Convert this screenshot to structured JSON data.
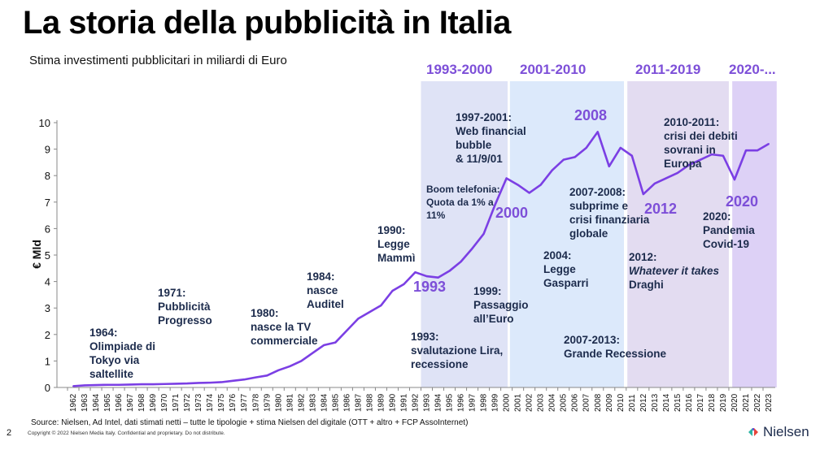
{
  "title": "La storia della pubblicità in Italia",
  "subtitle": "Stima investimenti pubblicitari in miliardi di Euro",
  "footer": {
    "source": "Source: Nielsen, Ad Intel, dati stimati netti – tutte le tipologie + stima Nielsen del digitale (OTT  + altro +  FCP AssoInternet)",
    "page_number": "2",
    "copyright": "Copyright © 2022 Nielsen Media Italy. Confidential and proprietary. Do not distribute.",
    "logo": "Nielsen"
  },
  "colors": {
    "line": "#7b3fe4",
    "text": "#1c2b4c",
    "highlight": "#7d4fd8",
    "band1": "#dfe3f6",
    "band2": "#dce9fb",
    "band3": "#e3dcf1",
    "band4": "#ddd1f6"
  },
  "chart_data": {
    "type": "line",
    "ylabel": "€ Mld",
    "ylim": [
      0,
      10
    ],
    "yticks": [
      0,
      1,
      2,
      3,
      4,
      5,
      6,
      7,
      8,
      9,
      10
    ],
    "x": [
      1962,
      1963,
      1964,
      1965,
      1966,
      1967,
      1968,
      1969,
      1970,
      1971,
      1972,
      1973,
      1974,
      1975,
      1976,
      1977,
      1978,
      1979,
      1980,
      1981,
      1982,
      1983,
      1984,
      1985,
      1986,
      1987,
      1988,
      1989,
      1990,
      1991,
      1992,
      1993,
      1994,
      1995,
      1996,
      1997,
      1998,
      1999,
      2000,
      2001,
      2002,
      2003,
      2004,
      2005,
      2006,
      2007,
      2008,
      2009,
      2010,
      2011,
      2012,
      2013,
      2014,
      2015,
      2016,
      2017,
      2018,
      2019,
      2020,
      2021,
      2022,
      2023
    ],
    "values": [
      0.05,
      0.08,
      0.09,
      0.1,
      0.1,
      0.11,
      0.12,
      0.12,
      0.13,
      0.14,
      0.15,
      0.17,
      0.18,
      0.2,
      0.25,
      0.3,
      0.38,
      0.45,
      0.65,
      0.8,
      1.0,
      1.3,
      1.6,
      1.7,
      2.15,
      2.6,
      2.85,
      3.1,
      3.65,
      3.9,
      4.35,
      4.2,
      4.15,
      4.4,
      4.75,
      5.25,
      5.8,
      6.9,
      7.9,
      7.65,
      7.35,
      7.65,
      8.2,
      8.6,
      8.7,
      9.05,
      9.65,
      8.35,
      9.05,
      8.75,
      7.3,
      7.7,
      7.9,
      8.1,
      8.4,
      8.6,
      8.8,
      8.75,
      7.85,
      8.95,
      8.95,
      9.2
    ],
    "periods": [
      {
        "label": "1993-2000",
        "from": 1992.5,
        "to": 2000.1
      },
      {
        "label": "2001-2010",
        "from": 2000.3,
        "to": 2010.3
      },
      {
        "label": "2011-2019",
        "from": 2010.6,
        "to": 2019.5
      },
      {
        "label": "2020-...",
        "from": 2019.8,
        "to": 2023.7
      }
    ],
    "highlights": [
      "1993",
      "2000",
      "2008",
      "2012",
      "2020"
    ],
    "annotations": {
      "a1964": [
        "1964:",
        "Olimpiade di",
        "Tokyo via",
        "saltellite"
      ],
      "a1971": [
        "1971:",
        "Pubblicità",
        "Progresso"
      ],
      "a1980": [
        "1980:",
        "nasce la TV",
        "commerciale"
      ],
      "a1984": [
        "1984:",
        "nasce",
        "Auditel"
      ],
      "a1990": [
        "1990:",
        "Legge",
        "Mammì"
      ],
      "a1993": [
        "1993:",
        "svalutazione Lira,",
        "recessione"
      ],
      "boom": [
        "Boom telefonia:",
        "Quota da 1% a",
        "11%"
      ],
      "a1997": [
        "1997-2001:",
        "Web financial",
        "bubble",
        " & 11/9/01"
      ],
      "a1999": [
        "1999:",
        "Passaggio",
        "all’Euro"
      ],
      "a2004": [
        "2004:",
        "Legge",
        "Gasparri"
      ],
      "a2007": [
        "2007-2008:",
        "subprime  e",
        "crisi finanziaria",
        "globale"
      ],
      "a2007b": [
        "2007-2013:",
        "Grande Recessione"
      ],
      "a2012": [
        "2012:",
        "Whatever it takes",
        "Draghi"
      ],
      "a2010": [
        "2010-2011:",
        "crisi dei debiti",
        "sovrani in",
        "Europa"
      ],
      "a2020": [
        "2020:",
        "Pandemia",
        "Covid-19"
      ]
    }
  }
}
